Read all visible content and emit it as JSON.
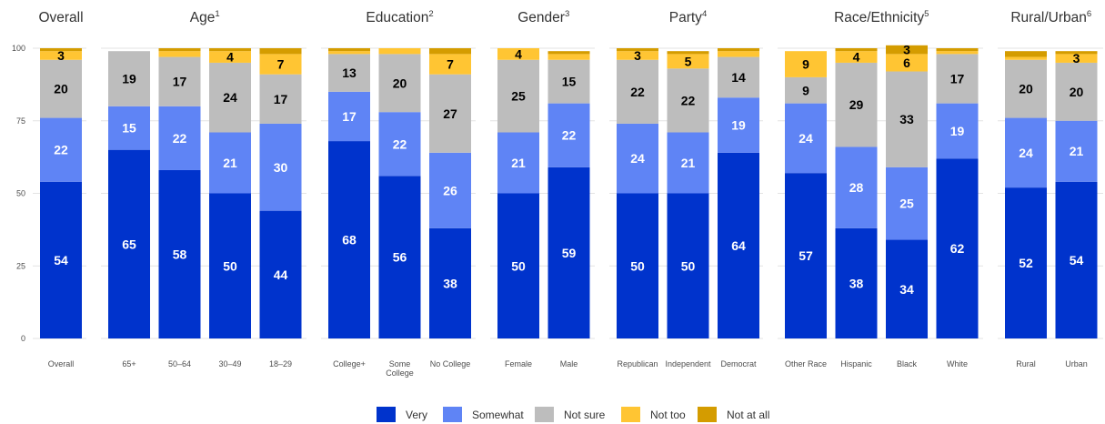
{
  "chart_data": {
    "type": "bar",
    "stacked": true,
    "ylim": [
      0,
      100
    ],
    "yticks": [
      0,
      25,
      50,
      75,
      100
    ],
    "grid": true,
    "legend_position": "bottom",
    "legend": [
      {
        "name": "Very",
        "color": "#0033cc"
      },
      {
        "name": "Somewhat",
        "color": "#5f84f5"
      },
      {
        "name": "Not sure",
        "color": "#bdbdbd"
      },
      {
        "name": "Not too",
        "color": "#ffc533"
      },
      {
        "name": "Not at all",
        "color": "#d49c00"
      }
    ],
    "panels": [
      {
        "title": "Overall",
        "sup": "",
        "categories": [
          {
            "label": "Overall",
            "values": [
              54,
              22,
              20,
              3,
              1
            ],
            "labels": [
              "54",
              "22",
              "20",
              "3",
              ""
            ]
          }
        ]
      },
      {
        "title": "Age",
        "sup": "1",
        "categories": [
          {
            "label": "65+",
            "values": [
              65,
              15,
              19,
              0,
              0
            ],
            "labels": [
              "65",
              "15",
              "19",
              "",
              ""
            ]
          },
          {
            "label": "50–64",
            "values": [
              58,
              22,
              17,
              2,
              1
            ],
            "labels": [
              "58",
              "22",
              "17",
              "",
              ""
            ]
          },
          {
            "label": "30–49",
            "values": [
              50,
              21,
              24,
              4,
              1
            ],
            "labels": [
              "50",
              "21",
              "24",
              "4",
              ""
            ]
          },
          {
            "label": "18–29",
            "values": [
              44,
              30,
              17,
              7,
              2
            ],
            "labels": [
              "44",
              "30",
              "17",
              "7",
              ""
            ]
          }
        ]
      },
      {
        "title": "Education",
        "sup": "2",
        "categories": [
          {
            "label": "College+",
            "values": [
              68,
              17,
              13,
              1,
              1
            ],
            "labels": [
              "68",
              "17",
              "13",
              "",
              ""
            ]
          },
          {
            "label": "Some College",
            "values": [
              56,
              22,
              20,
              2,
              0
            ],
            "labels": [
              "56",
              "22",
              "20",
              "",
              ""
            ]
          },
          {
            "label": "No College",
            "values": [
              38,
              26,
              27,
              7,
              2
            ],
            "labels": [
              "38",
              "26",
              "27",
              "7",
              ""
            ]
          }
        ]
      },
      {
        "title": "Gender",
        "sup": "3",
        "categories": [
          {
            "label": "Female",
            "values": [
              50,
              21,
              25,
              4,
              0
            ],
            "labels": [
              "50",
              "21",
              "25",
              "4",
              ""
            ]
          },
          {
            "label": "Male",
            "values": [
              59,
              22,
              15,
              2,
              1
            ],
            "labels": [
              "59",
              "22",
              "15",
              "",
              ""
            ]
          }
        ]
      },
      {
        "title": "Party",
        "sup": "4",
        "categories": [
          {
            "label": "Republican",
            "values": [
              50,
              24,
              22,
              3,
              1
            ],
            "labels": [
              "50",
              "24",
              "22",
              "3",
              ""
            ]
          },
          {
            "label": "Independent",
            "values": [
              50,
              21,
              22,
              5,
              1
            ],
            "labels": [
              "50",
              "21",
              "22",
              "5",
              ""
            ]
          },
          {
            "label": "Democrat",
            "values": [
              64,
              19,
              14,
              2,
              1
            ],
            "labels": [
              "64",
              "19",
              "14",
              "",
              ""
            ]
          }
        ]
      },
      {
        "title": "Race/Ethnicity",
        "sup": "5",
        "categories": [
          {
            "label": "Other Race",
            "values": [
              57,
              24,
              9,
              9,
              0
            ],
            "labels": [
              "57",
              "24",
              "9",
              "9",
              ""
            ]
          },
          {
            "label": "Hispanic",
            "values": [
              38,
              28,
              29,
              4,
              1
            ],
            "labels": [
              "38",
              "28",
              "29",
              "4",
              ""
            ]
          },
          {
            "label": "Black",
            "values": [
              34,
              25,
              33,
              6,
              3
            ],
            "labels": [
              "34",
              "25",
              "33",
              "6",
              "3"
            ]
          },
          {
            "label": "White",
            "values": [
              62,
              19,
              17,
              1,
              1
            ],
            "labels": [
              "62",
              "19",
              "17",
              "",
              ""
            ]
          }
        ]
      },
      {
        "title": "Rural/Urban",
        "sup": "6",
        "categories": [
          {
            "label": "Rural",
            "values": [
              52,
              24,
              20,
              1,
              2
            ],
            "labels": [
              "52",
              "24",
              "20",
              "",
              ""
            ]
          },
          {
            "label": "Urban",
            "values": [
              54,
              21,
              20,
              3,
              1
            ],
            "labels": [
              "54",
              "21",
              "20",
              "3",
              ""
            ]
          }
        ]
      }
    ]
  }
}
